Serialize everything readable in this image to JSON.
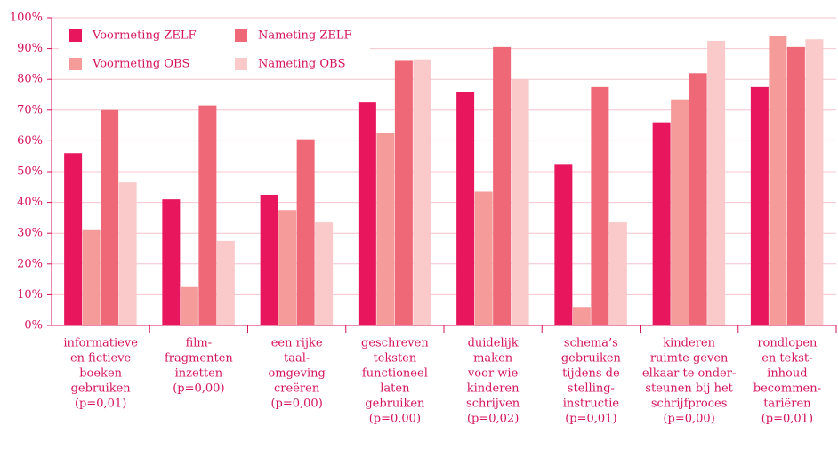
{
  "chart_data": {
    "type": "bar",
    "categories": [
      [
        "informatieve",
        "en fictieve",
        "boeken",
        "gebruiken",
        "(p=0,01)"
      ],
      [
        "film-",
        "fragmenten",
        "inzetten",
        "(p=0,00)"
      ],
      [
        "een rijke",
        "taal-",
        "omgeving",
        "creëren",
        "(p=0,00)"
      ],
      [
        "geschreven",
        "teksten",
        "functioneel",
        "laten",
        "gebruiken",
        "(p=0,00)"
      ],
      [
        "duidelijk",
        "maken",
        "voor wie",
        "kinderen",
        "schrijven",
        "(p=0,02)"
      ],
      [
        "schema’s",
        "gebruiken",
        "tijdens de",
        "stelling-",
        "instructie",
        "(p=0,01)"
      ],
      [
        "kinderen",
        "ruimte geven",
        "elkaar te onder-",
        "steunen bij het",
        "schrijfproces",
        "(p=0,00)"
      ],
      [
        "rondlopen",
        "en tekst-",
        "inhoud",
        "becommen-",
        "tariëren",
        "(p=0,01)"
      ]
    ],
    "series": [
      {
        "name": "Voormeting ZELF",
        "color": "#e8175d",
        "values": [
          56,
          41,
          42.5,
          72.5,
          76,
          52.5,
          66,
          77.5
        ]
      },
      {
        "name": "Voormeting OBS",
        "color": "#f59c9b",
        "values": [
          31,
          12.5,
          37.5,
          62.5,
          43.5,
          6,
          73.5,
          94
        ]
      },
      {
        "name": "Nameting ZELF",
        "color": "#ef6877",
        "values": [
          70,
          71.5,
          60.5,
          86,
          90.5,
          77.5,
          82,
          90.5
        ]
      },
      {
        "name": "Nameting OBS",
        "color": "#f9cac9",
        "values": [
          46.5,
          27.5,
          33.5,
          86.5,
          80,
          33.5,
          92.5,
          93
        ]
      }
    ],
    "ylim": [
      0,
      100
    ],
    "yticks": [
      {
        "value": 0,
        "label": "0%"
      },
      {
        "value": 10,
        "label": "10%"
      },
      {
        "value": 20,
        "label": "20%"
      },
      {
        "value": 30,
        "label": "30%"
      },
      {
        "value": 40,
        "label": "40%"
      },
      {
        "value": 50,
        "label": "50%"
      },
      {
        "value": 60,
        "label": "60%"
      },
      {
        "value": 70,
        "label": "70%"
      },
      {
        "value": 80,
        "label": "80%"
      },
      {
        "value": 90,
        "label": "90%"
      },
      {
        "value": 100,
        "label": "100%"
      }
    ],
    "grid": true
  }
}
